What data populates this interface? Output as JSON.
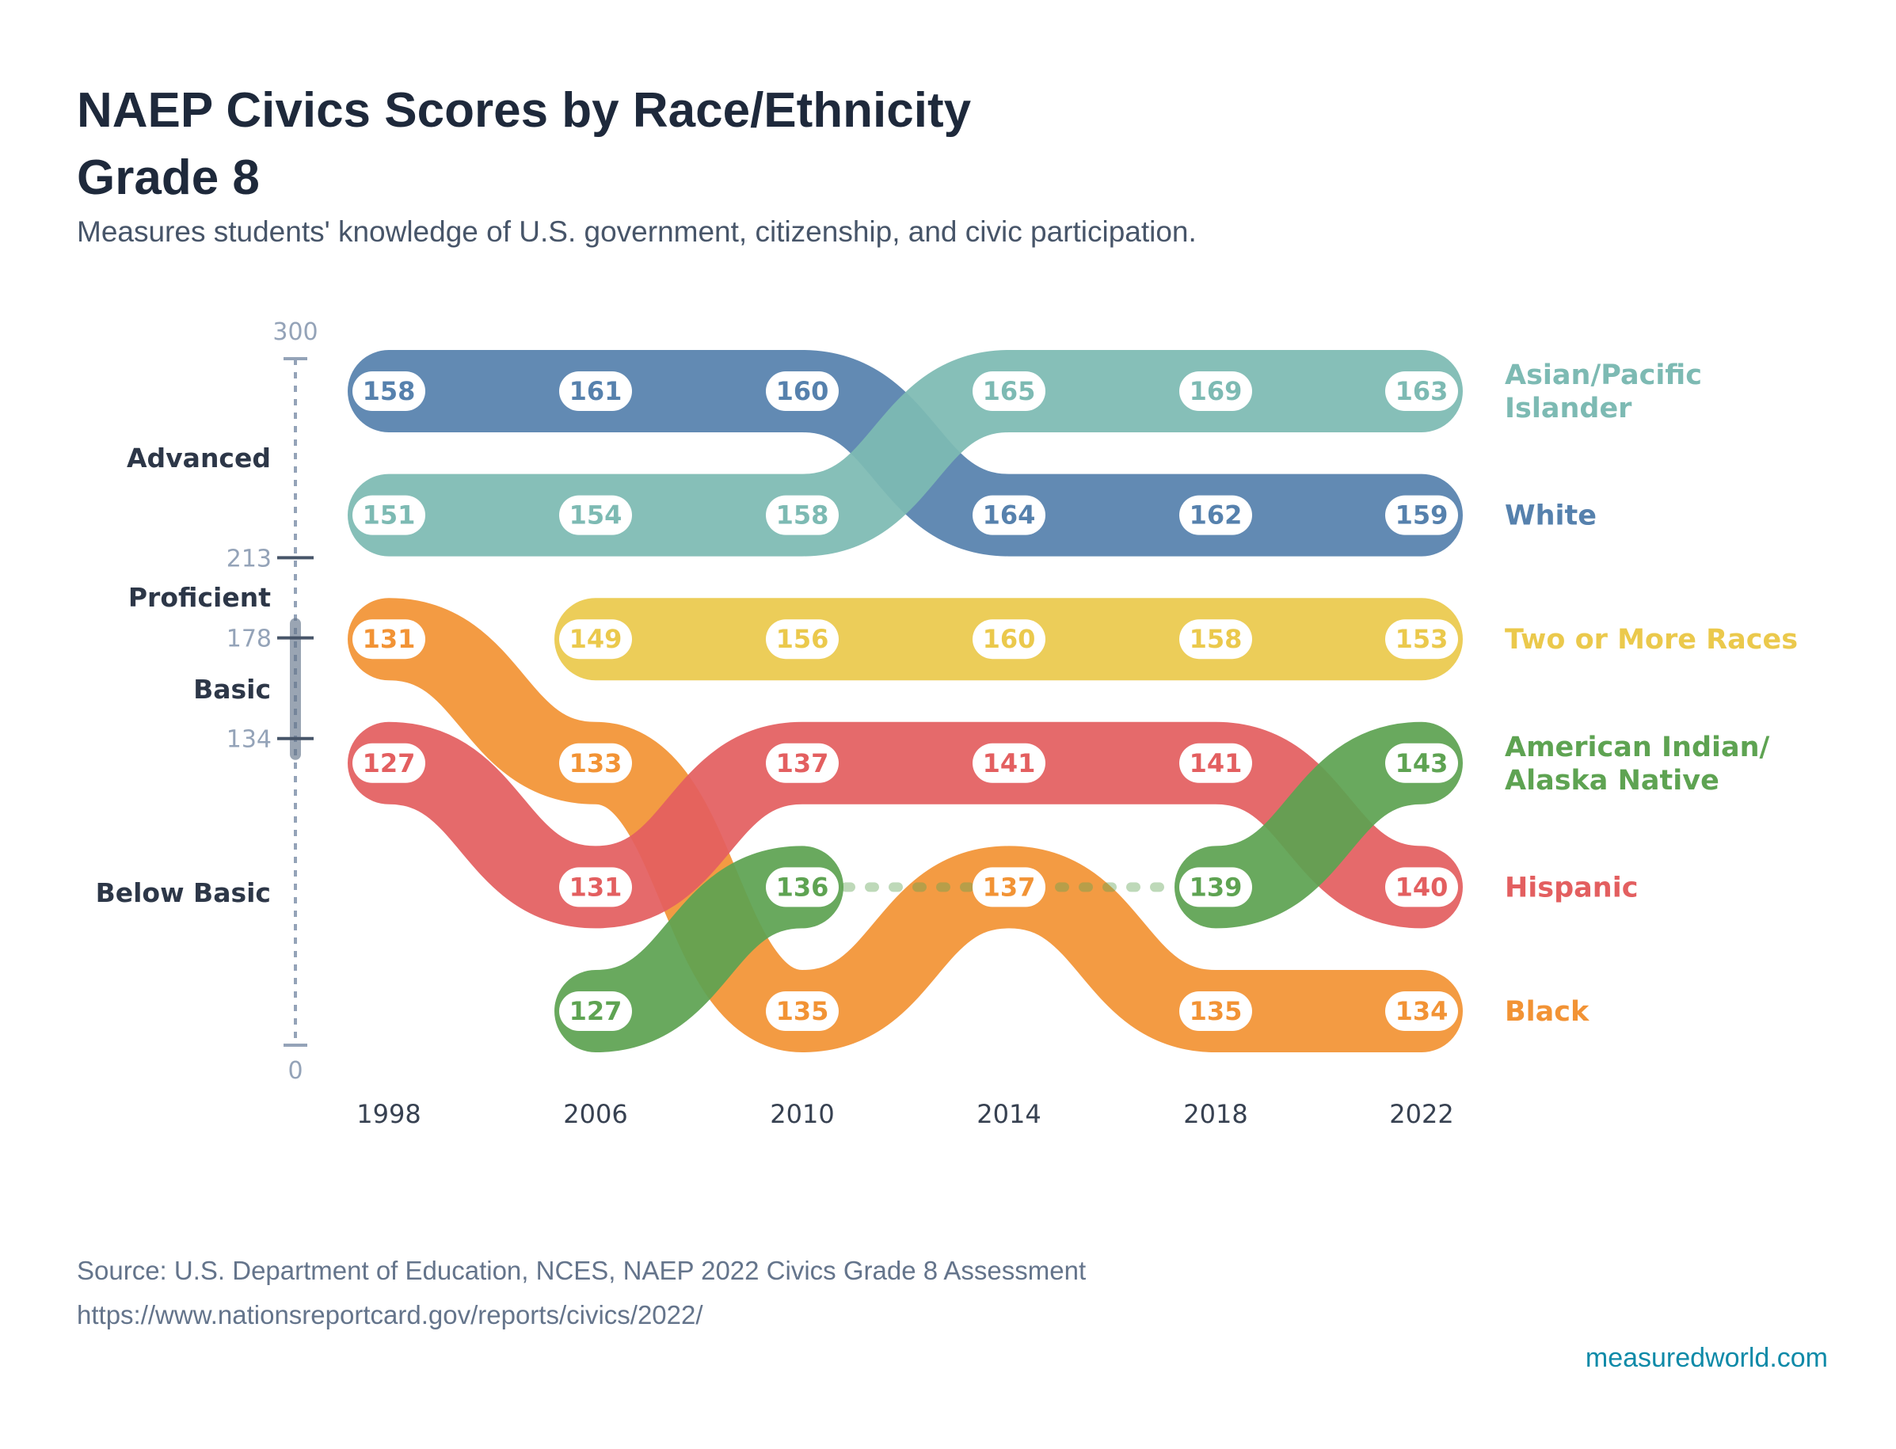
{
  "title_line1": "NAEP Civics Scores by Race/Ethnicity",
  "title_line2": "Grade 8",
  "subtitle": "Measures students' knowledge of U.S. government, citizenship, and civic participation.",
  "source": "Source: U.S. Department of Education, NCES, NAEP 2022 Civics Grade 8 Assessment",
  "source_url": "https://www.nationsreportcard.gov/reports/civics/2022/",
  "brand": "measuredworld.com",
  "chart_data": {
    "type": "bump",
    "title": "NAEP Civics Scores by Race/Ethnicity Grade 8",
    "categories": [
      "1998",
      "2006",
      "2010",
      "2014",
      "2018",
      "2022"
    ],
    "scale": {
      "range": [
        0,
        300
      ],
      "ticks": [
        "300",
        "213",
        "178",
        "134",
        "0"
      ],
      "levels": [
        "Advanced",
        "Proficient",
        "Basic",
        "Below Basic"
      ],
      "highlight_range": [
        134,
        178
      ]
    },
    "series": [
      {
        "name": "White",
        "label_lines": [
          "White"
        ],
        "color": "#5681ad",
        "values": [
          158,
          161,
          160,
          164,
          162,
          159
        ]
      },
      {
        "name": "Asian/Pacific Islander",
        "label_lines": [
          "Asian/Pacific",
          "Islander"
        ],
        "color": "#7dbab3",
        "values": [
          151,
          154,
          158,
          165,
          169,
          163
        ]
      },
      {
        "name": "Two or More Races",
        "label_lines": [
          "Two or More Races"
        ],
        "color": "#ebc94c",
        "values": [
          null,
          149,
          156,
          160,
          158,
          153
        ]
      },
      {
        "name": "Black",
        "label_lines": [
          "Black"
        ],
        "color": "#f29335",
        "values": [
          131,
          133,
          135,
          137,
          135,
          134
        ]
      },
      {
        "name": "Hispanic",
        "label_lines": [
          "Hispanic"
        ],
        "color": "#e35f60",
        "values": [
          127,
          131,
          137,
          141,
          141,
          140
        ]
      },
      {
        "name": "American Indian/Alaska Native",
        "label_lines": [
          "American Indian/",
          "Alaska Native"
        ],
        "color": "#5ea352",
        "values": [
          null,
          127,
          136,
          null,
          139,
          143
        ]
      }
    ],
    "legend": "right",
    "grid": false
  }
}
